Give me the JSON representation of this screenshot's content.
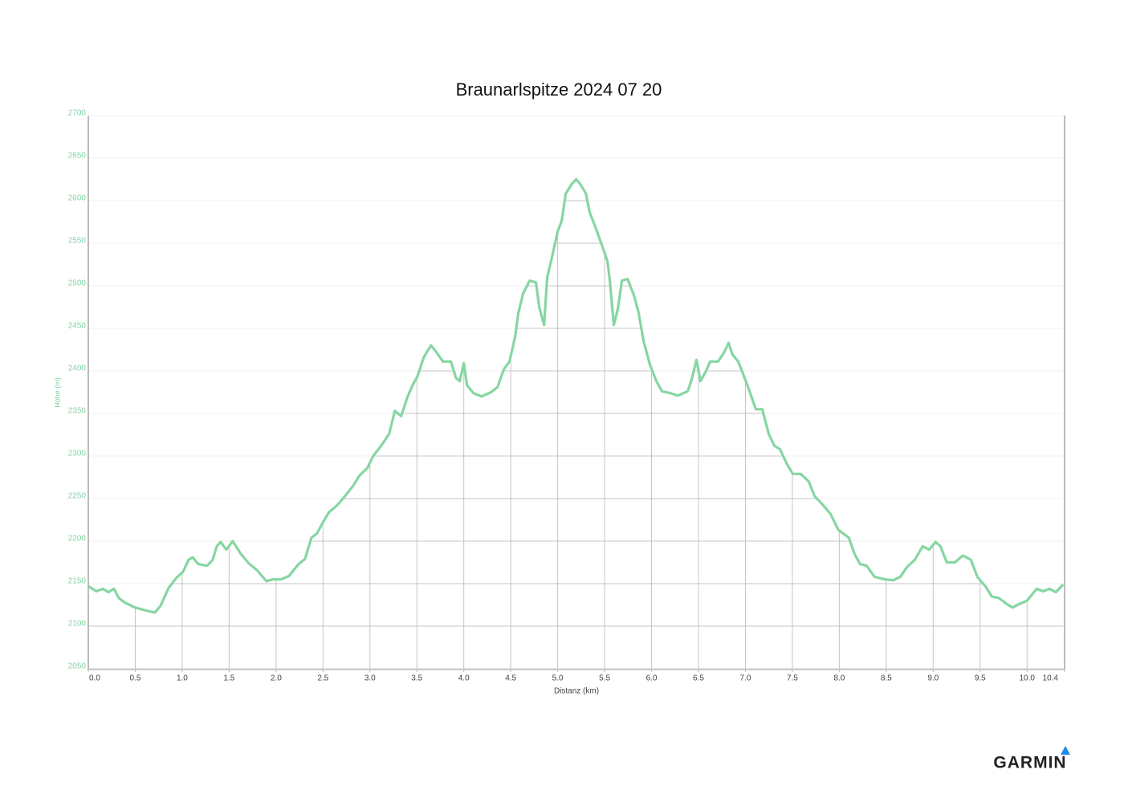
{
  "chart_data": {
    "type": "line",
    "title": "Braunarlspitze 2024 07 20",
    "x_label": "Distanz (km)",
    "y_label": "Höhe (m)",
    "xlim": [
      0,
      10.4
    ],
    "ylim": [
      2050,
      2700
    ],
    "xticks": [
      {
        "value": 0,
        "label": "0.0"
      },
      0.5,
      {
        "value": 1,
        "label": "1.0"
      },
      1.5,
      {
        "value": 2,
        "label": "2.0"
      },
      2.5,
      {
        "value": 3,
        "label": "3.0"
      },
      3.5,
      {
        "value": 4,
        "label": "4.0"
      },
      4.5,
      {
        "value": 5,
        "label": "5.0"
      },
      5.5,
      {
        "value": 6,
        "label": "6.0"
      },
      6.5,
      {
        "value": 7,
        "label": "7.0"
      },
      7.5,
      {
        "value": 8,
        "label": "8.0"
      },
      8.5,
      {
        "value": 9,
        "label": "9.0"
      },
      9.5,
      {
        "value": 10,
        "label": "10.0"
      },
      10.4
    ],
    "yticks": [
      2050,
      2100,
      2150,
      2200,
      2250,
      2300,
      2350,
      2400,
      2450,
      2500,
      2550,
      2600,
      2650,
      2700
    ],
    "grid": true,
    "x": [
      0,
      0.085,
      0.154,
      0.214,
      0.274,
      0.325,
      0.385,
      0.496,
      0.598,
      0.709,
      0.769,
      0.855,
      0.94,
      1.009,
      1.068,
      1.111,
      1.171,
      1.265,
      1.325,
      1.368,
      1.41,
      1.47,
      1.538,
      1.624,
      1.709,
      1.795,
      1.897,
      1.966,
      2.051,
      2.137,
      2.239,
      2.308,
      2.376,
      2.436,
      2.504,
      2.564,
      2.65,
      2.735,
      2.821,
      2.889,
      2.974,
      3.034,
      3.12,
      3.205,
      3.265,
      3.333,
      3.402,
      3.462,
      3.504,
      3.573,
      3.65,
      3.701,
      3.778,
      3.863,
      3.915,
      3.957,
      4.0,
      4.034,
      4.103,
      4.188,
      4.291,
      4.359,
      4.427,
      4.487,
      4.547,
      4.581,
      4.632,
      4.701,
      4.769,
      4.803,
      4.855,
      4.889,
      4.94,
      5.0,
      5.043,
      5.085,
      5.145,
      5.197,
      5.231,
      5.299,
      5.342,
      5.402,
      5.47,
      5.53,
      5.556,
      5.598,
      5.641,
      5.684,
      5.744,
      5.812,
      5.863,
      5.915,
      5.983,
      6.051,
      6.111,
      6.197,
      6.282,
      6.385,
      6.427,
      6.479,
      6.521,
      6.581,
      6.624,
      6.709,
      6.769,
      6.821,
      6.863,
      6.923,
      6.991,
      7.051,
      7.111,
      7.179,
      7.248,
      7.308,
      7.368,
      7.436,
      7.504,
      7.59,
      7.675,
      7.735,
      7.821,
      7.906,
      7.991,
      8.103,
      8.162,
      8.222,
      8.291,
      8.376,
      8.487,
      8.573,
      8.65,
      8.718,
      8.803,
      8.889,
      8.957,
      9.026,
      9.077,
      9.145,
      9.231,
      9.316,
      9.402,
      9.47,
      9.556,
      9.624,
      9.701,
      9.786,
      9.846,
      9.915,
      10.0,
      10.103,
      10.171,
      10.239,
      10.308,
      10.385
    ],
    "series": [
      {
        "name": "Höhe",
        "color": "#86d6a2",
        "values": [
          2147,
          2141,
          2144,
          2140,
          2144,
          2133,
          2128,
          2122,
          2119,
          2116,
          2124,
          2145,
          2157,
          2164,
          2178,
          2181,
          2173,
          2171,
          2178,
          2194,
          2199,
          2190,
          2200,
          2185,
          2174,
          2166,
          2153,
          2155,
          2155,
          2159,
          2173,
          2179,
          2204,
          2209,
          2223,
          2234,
          2242,
          2253,
          2265,
          2277,
          2286,
          2300,
          2312,
          2326,
          2353,
          2347,
          2370,
          2385,
          2393,
          2416,
          2430,
          2423,
          2411,
          2411,
          2392,
          2388,
          2409,
          2383,
          2374,
          2370,
          2375,
          2381,
          2402,
          2411,
          2440,
          2468,
          2491,
          2506,
          2504,
          2475,
          2454,
          2510,
          2534,
          2564,
          2576,
          2608,
          2619,
          2625,
          2621,
          2609,
          2586,
          2569,
          2548,
          2529,
          2506,
          2454,
          2473,
          2506,
          2508,
          2489,
          2468,
          2435,
          2407,
          2388,
          2376,
          2374,
          2371,
          2376,
          2390,
          2413,
          2388,
          2400,
          2411,
          2411,
          2421,
          2433,
          2419,
          2411,
          2392,
          2374,
          2355,
          2355,
          2326,
          2312,
          2308,
          2292,
          2279,
          2279,
          2270,
          2253,
          2243,
          2232,
          2213,
          2204,
          2185,
          2173,
          2171,
          2158,
          2155,
          2154,
          2158,
          2169,
          2178,
          2194,
          2190,
          2199,
          2194,
          2175,
          2175,
          2183,
          2178,
          2158,
          2147,
          2135,
          2133,
          2126,
          2122,
          2126,
          2130,
          2144,
          2141,
          2144,
          2140,
          2149
        ]
      }
    ]
  },
  "footer": {
    "logo": "GARMIN"
  }
}
